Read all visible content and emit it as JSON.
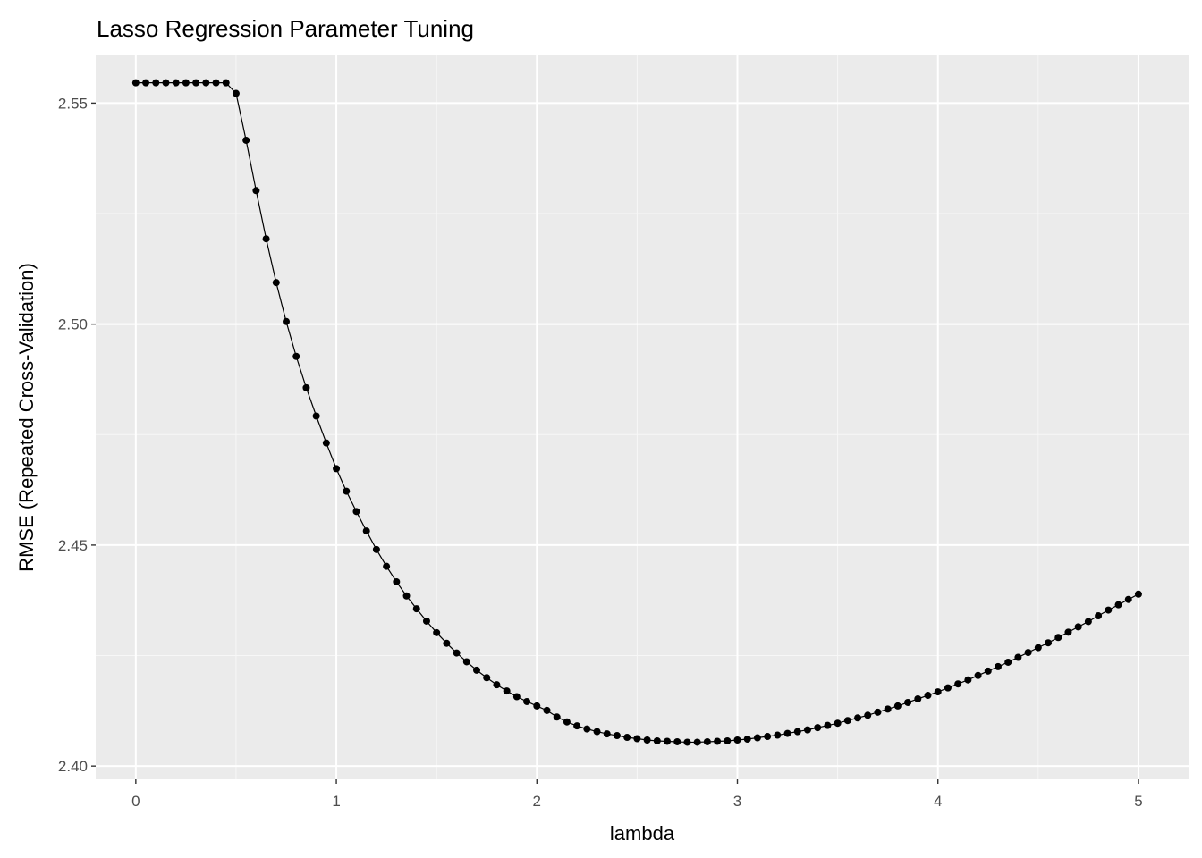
{
  "chart_data": {
    "type": "line",
    "title": "Lasso Regression Parameter Tuning",
    "xlabel": "lambda",
    "ylabel": "RMSE (Repeated Cross-Validation)",
    "xlim": [
      -0.2,
      5.25
    ],
    "ylim": [
      2.397,
      2.561
    ],
    "x_ticks": [
      0,
      1,
      2,
      3,
      4,
      5
    ],
    "x_tick_labels": [
      "0",
      "1",
      "2",
      "3",
      "4",
      "5"
    ],
    "y_ticks": [
      2.4,
      2.45,
      2.5,
      2.55
    ],
    "y_tick_labels": [
      "2.40",
      "2.45",
      "2.50",
      "2.55"
    ],
    "grid": true,
    "legend": "none",
    "markers": true,
    "series": [
      {
        "color": "#000000",
        "x": [
          0,
          0.05,
          0.1,
          0.15,
          0.2,
          0.25,
          0.3,
          0.35,
          0.4,
          0.45,
          0.5,
          0.55,
          0.6,
          0.65,
          0.7,
          0.75,
          0.8,
          0.85,
          0.9,
          0.95,
          1.0,
          1.05,
          1.1,
          1.15,
          1.2,
          1.25,
          1.3,
          1.35,
          1.4,
          1.45,
          1.5,
          1.55,
          1.6,
          1.65,
          1.7,
          1.75,
          1.8,
          1.85,
          1.9,
          1.95,
          2.0,
          2.05,
          2.1,
          2.15,
          2.2,
          2.25,
          2.3,
          2.35,
          2.4,
          2.45,
          2.5,
          2.55,
          2.6,
          2.65,
          2.7,
          2.75,
          2.8,
          2.85,
          2.9,
          2.95,
          3.0,
          3.05,
          3.1,
          3.15,
          3.2,
          3.25,
          3.3,
          3.35,
          3.4,
          3.45,
          3.5,
          3.55,
          3.6,
          3.65,
          3.7,
          3.75,
          3.8,
          3.85,
          3.9,
          3.95,
          4.0,
          4.05,
          4.1,
          4.15,
          4.2,
          4.25,
          4.3,
          4.35,
          4.4,
          4.45,
          4.5,
          4.55,
          4.6,
          4.65,
          4.7,
          4.75,
          4.8,
          4.85,
          4.9,
          4.95,
          5.0
        ],
        "values": [
          2.5546,
          2.5546,
          2.5546,
          2.5546,
          2.5546,
          2.5546,
          2.5546,
          2.5546,
          2.5546,
          2.5546,
          2.5522,
          2.5416,
          2.5302,
          2.5193,
          2.5094,
          2.5006,
          2.4927,
          2.4856,
          2.4792,
          2.4731,
          2.4673,
          2.4622,
          2.4576,
          2.4532,
          2.449,
          2.4452,
          2.4417,
          2.4385,
          2.4356,
          2.4328,
          2.4302,
          2.4278,
          2.4256,
          2.4236,
          2.4217,
          2.42,
          2.4184,
          2.417,
          2.4157,
          2.4146,
          2.4136,
          2.4126,
          2.4111,
          2.41,
          2.4091,
          2.4084,
          2.4078,
          2.4073,
          2.4069,
          2.4065,
          2.4062,
          2.4059,
          2.4057,
          2.4056,
          2.4055,
          2.4054,
          2.4054,
          2.4055,
          2.4056,
          2.4057,
          2.4059,
          2.4061,
          2.4064,
          2.4067,
          2.407,
          2.4074,
          2.4078,
          2.4082,
          2.4087,
          2.4092,
          2.4097,
          2.4103,
          2.4109,
          2.4115,
          2.4122,
          2.4129,
          2.4136,
          2.4144,
          2.4152,
          2.416,
          2.4168,
          2.4177,
          2.4186,
          2.4195,
          2.4205,
          2.4215,
          2.4225,
          2.4235,
          2.4246,
          2.4257,
          2.4268,
          2.4279,
          2.4291,
          2.4303,
          2.4315,
          2.4327,
          2.434,
          2.4353,
          2.4365,
          2.4377,
          2.4389
        ]
      }
    ]
  }
}
